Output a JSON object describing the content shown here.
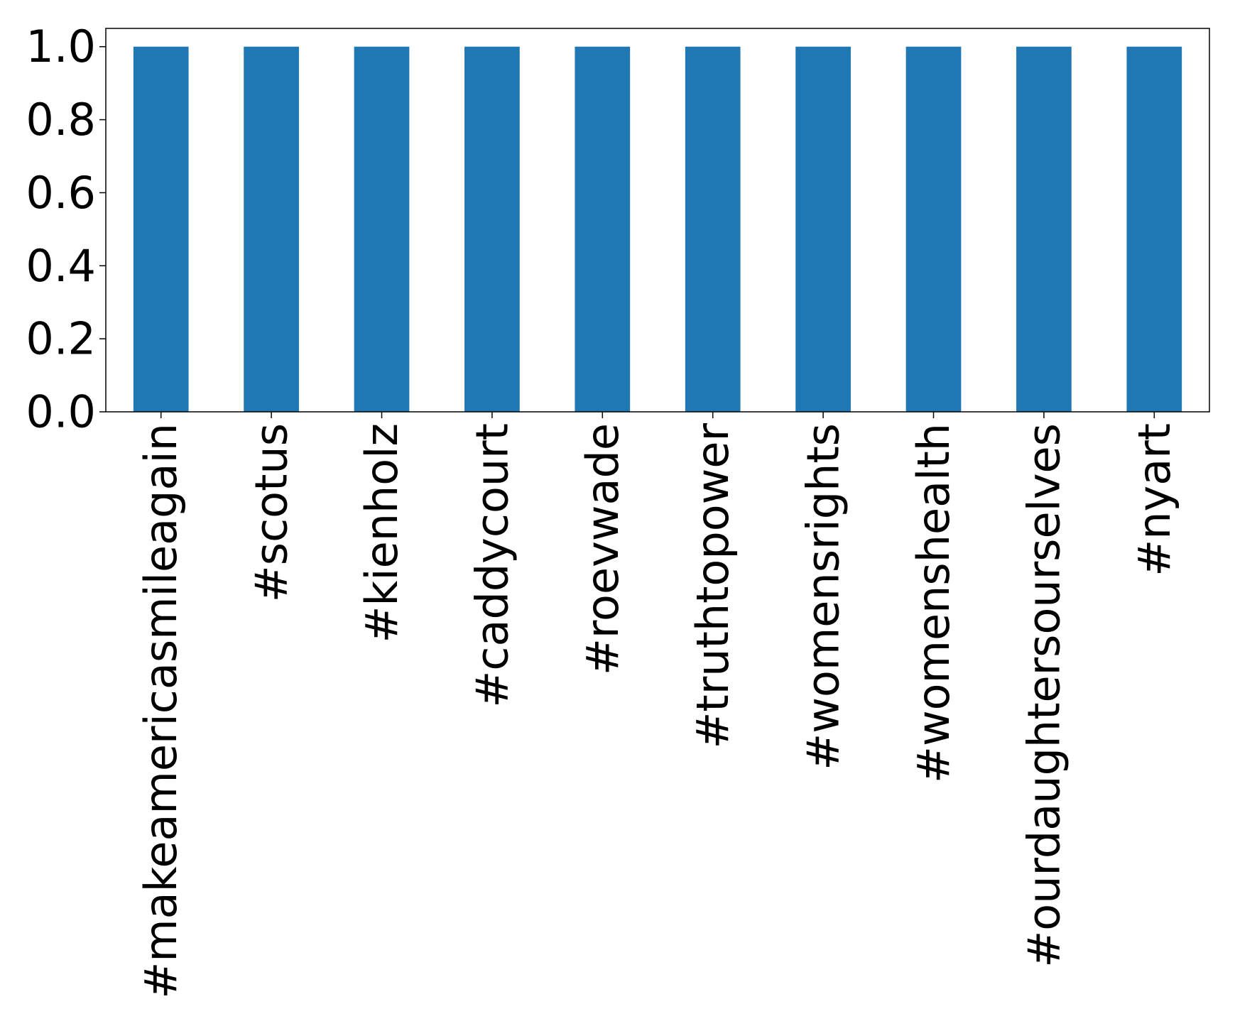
{
  "chart_data": {
    "type": "bar",
    "title": "",
    "xlabel": "",
    "ylabel": "",
    "categories": [
      "#makeamericasmileagain",
      "#scotus",
      "#kienholz",
      "#caddycourt",
      "#roevwade",
      "#truthtopower",
      "#womensrights",
      "#womenshealth",
      "#ourdaughtersourselves",
      "#nyart"
    ],
    "values": [
      1.0,
      1.0,
      1.0,
      1.0,
      1.0,
      1.0,
      1.0,
      1.0,
      1.0,
      1.0
    ],
    "ylim": [
      0,
      1.05
    ],
    "yticks": [
      "0.0",
      "0.2",
      "0.4",
      "0.6",
      "0.8",
      "1.0"
    ],
    "bar_color": "#1f77b4",
    "grid": false,
    "legend": false
  }
}
